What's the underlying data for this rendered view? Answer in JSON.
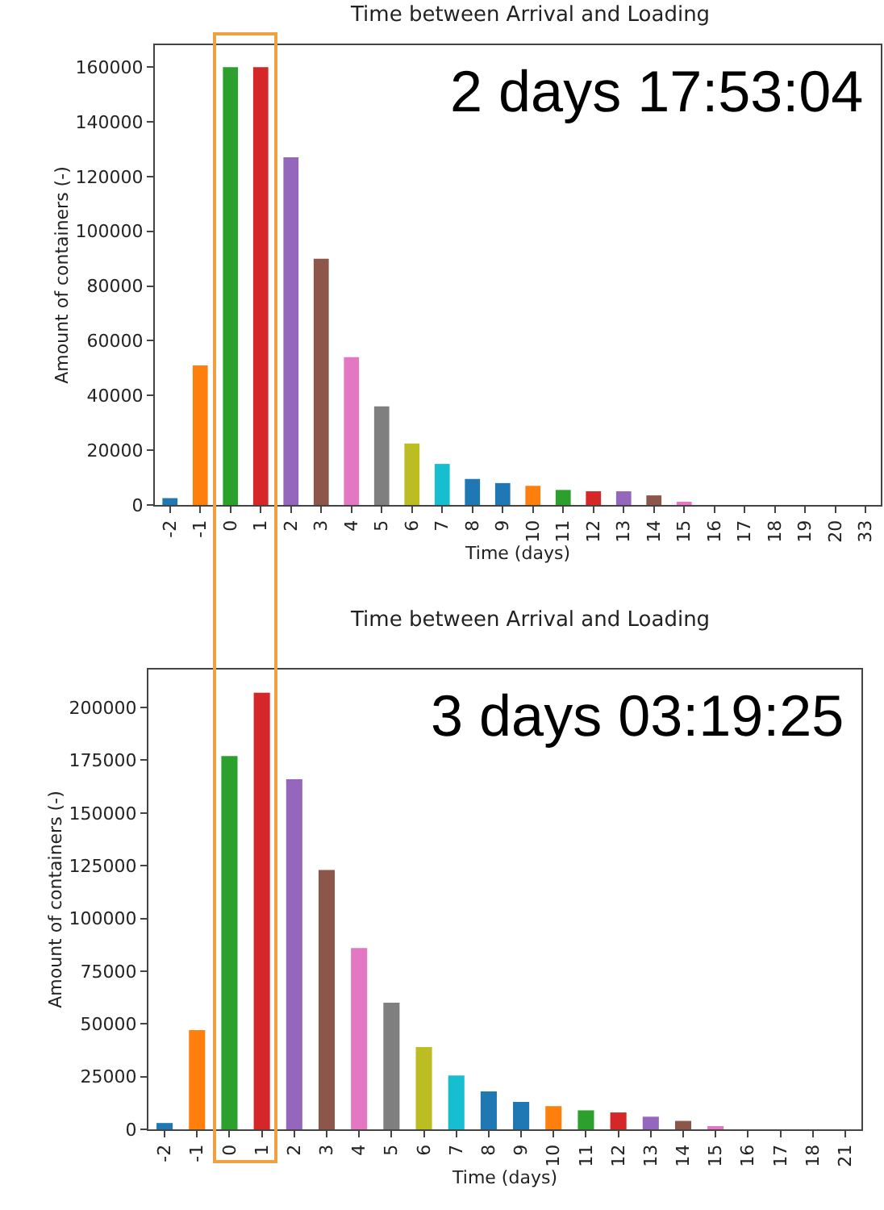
{
  "chart_data": [
    {
      "type": "bar",
      "title": "Time between Arrival and Loading",
      "xlabel": "Time (days)",
      "ylabel": "Amount of containers (-)",
      "categories": [
        "-2",
        "-1",
        "0",
        "1",
        "2",
        "3",
        "4",
        "5",
        "6",
        "7",
        "8",
        "9",
        "10",
        "11",
        "12",
        "13",
        "14",
        "15",
        "16",
        "17",
        "18",
        "19",
        "20",
        "33"
      ],
      "values": [
        2500,
        51000,
        160000,
        160000,
        127000,
        90000,
        54000,
        36000,
        22500,
        15000,
        9500,
        8000,
        7000,
        5500,
        5000,
        5000,
        3500,
        1000,
        null,
        null,
        null,
        null,
        null,
        null
      ],
      "colors": [
        "#1f77b4",
        "#ff7f0e",
        "#2ca02c",
        "#d62728",
        "#9467bd",
        "#8c564b",
        "#e377c2",
        "#7f7f7f",
        "#bcbd22",
        "#17becf",
        "#1f77b4",
        "#1f77b4",
        "#ff7f0e",
        "#2ca02c",
        "#d62728",
        "#9467bd",
        "#8c564b",
        "#e377c2",
        "#7f7f7f",
        "#bcbd22",
        "#17becf",
        "#1f77b4",
        "#ff7f0e",
        "#2ca02c"
      ],
      "ylim": [
        0,
        168000
      ],
      "yticks": [
        0,
        20000,
        40000,
        60000,
        80000,
        100000,
        120000,
        140000,
        160000
      ],
      "grid": false,
      "legend": false,
      "annotations": [
        "2 days 17:53:04"
      ]
    },
    {
      "type": "bar",
      "title": "Time between Arrival and Loading",
      "xlabel": "Time (days)",
      "ylabel": "Amount of containers (-)",
      "categories": [
        "-2",
        "-1",
        "0",
        "1",
        "2",
        "3",
        "4",
        "5",
        "6",
        "7",
        "8",
        "9",
        "10",
        "11",
        "12",
        "13",
        "14",
        "15",
        "16",
        "17",
        "18",
        "21"
      ],
      "values": [
        3000,
        47000,
        177000,
        207000,
        166000,
        123000,
        86000,
        60000,
        39000,
        25500,
        18000,
        13000,
        11000,
        9000,
        8000,
        6000,
        4000,
        1000,
        null,
        null,
        null,
        null
      ],
      "colors": [
        "#1f77b4",
        "#ff7f0e",
        "#2ca02c",
        "#d62728",
        "#9467bd",
        "#8c564b",
        "#e377c2",
        "#7f7f7f",
        "#bcbd22",
        "#17becf",
        "#1f77b4",
        "#1f77b4",
        "#ff7f0e",
        "#2ca02c",
        "#d62728",
        "#9467bd",
        "#8c564b",
        "#e377c2",
        "#7f7f7f",
        "#bcbd22",
        "#17becf",
        "#1f77b4"
      ],
      "ylim": [
        0,
        218000
      ],
      "yticks": [
        0,
        25000,
        50000,
        75000,
        100000,
        125000,
        150000,
        175000,
        200000
      ],
      "grid": false,
      "legend": false,
      "annotations": [
        "3 days 03:19:25"
      ]
    }
  ]
}
